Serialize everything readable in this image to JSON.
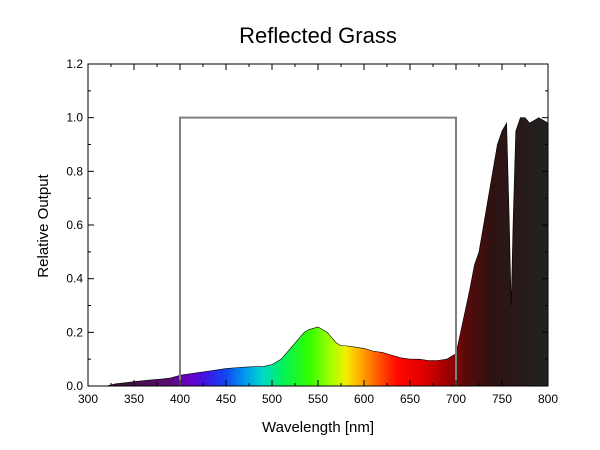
{
  "chart_data": {
    "type": "area",
    "title": "Reflected Grass",
    "xlabel": "Wavelength [nm]",
    "ylabel": "Relative Output",
    "xlim": [
      300,
      800
    ],
    "ylim": [
      0,
      1.2
    ],
    "x_ticks": [
      300,
      350,
      400,
      450,
      500,
      550,
      600,
      650,
      700,
      750,
      800
    ],
    "y_ticks": [
      0.0,
      0.2,
      0.4,
      0.6,
      0.8,
      1.0,
      1.2
    ],
    "x_tick_labels": [
      "300",
      "350",
      "400",
      "450",
      "500",
      "550",
      "600",
      "650",
      "700",
      "750",
      "800"
    ],
    "y_tick_labels": [
      "0.0",
      "0.2",
      "0.4",
      "0.6",
      "0.8",
      "1.0",
      "1.2"
    ],
    "grid": false,
    "series": [
      {
        "x": [
          320,
          330,
          340,
          350,
          360,
          370,
          380,
          390,
          400,
          410,
          420,
          430,
          440,
          450,
          460,
          470,
          480,
          490,
          500,
          505,
          510,
          515,
          520,
          525,
          530,
          535,
          540,
          545,
          550,
          555,
          560,
          565,
          570,
          575,
          580,
          590,
          600,
          610,
          620,
          630,
          640,
          650,
          660,
          670,
          680,
          690,
          700,
          705,
          710,
          715,
          720,
          725,
          730,
          735,
          740,
          745,
          750,
          755,
          758,
          760,
          762,
          765,
          770,
          775,
          780,
          785,
          790,
          795,
          800
        ],
        "y": [
          0.0,
          0.008,
          0.012,
          0.016,
          0.02,
          0.023,
          0.026,
          0.03,
          0.04,
          0.045,
          0.05,
          0.055,
          0.06,
          0.065,
          0.068,
          0.07,
          0.072,
          0.072,
          0.08,
          0.09,
          0.1,
          0.12,
          0.14,
          0.16,
          0.18,
          0.2,
          0.21,
          0.215,
          0.22,
          0.21,
          0.2,
          0.18,
          0.16,
          0.15,
          0.15,
          0.145,
          0.14,
          0.13,
          0.125,
          0.115,
          0.105,
          0.1,
          0.1,
          0.095,
          0.095,
          0.1,
          0.12,
          0.2,
          0.28,
          0.36,
          0.45,
          0.5,
          0.6,
          0.7,
          0.8,
          0.9,
          0.95,
          0.98,
          0.6,
          0.3,
          0.6,
          0.95,
          1.0,
          1.0,
          0.98,
          0.99,
          1.0,
          0.99,
          0.98
        ]
      },
      {
        "x": [
          400,
          400,
          700,
          700
        ],
        "y": [
          0,
          1.0,
          1.0,
          0
        ]
      }
    ]
  }
}
